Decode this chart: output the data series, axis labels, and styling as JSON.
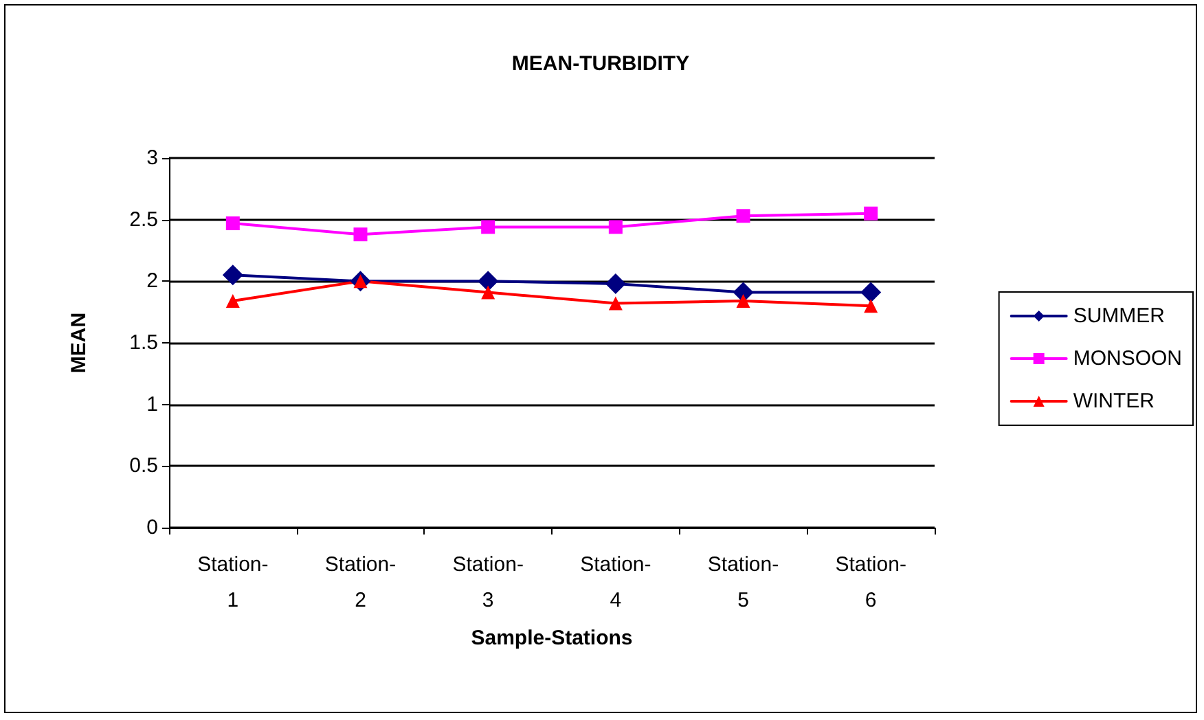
{
  "chart_data": {
    "type": "line",
    "title": "MEAN-TURBIDITY",
    "xlabel": "Sample-Stations",
    "ylabel": "MEAN",
    "categories": [
      "Station-\n1",
      "Station-\n2",
      "Station-\n3",
      "Station-\n4",
      "Station-\n5",
      "Station-\n6"
    ],
    "series": [
      {
        "name": "SUMMER",
        "color": "#000080",
        "marker": "diamond",
        "values": [
          2.05,
          2.0,
          2.0,
          1.98,
          1.91,
          1.91
        ]
      },
      {
        "name": "MONSOON",
        "color": "#ff00ff",
        "marker": "square",
        "values": [
          2.47,
          2.38,
          2.44,
          2.44,
          2.53,
          2.55
        ]
      },
      {
        "name": "WINTER",
        "color": "#ff0000",
        "marker": "triangle",
        "values": [
          1.84,
          2.0,
          1.91,
          1.82,
          1.84,
          1.8
        ]
      }
    ],
    "ylim": [
      0,
      3
    ],
    "yticks": [
      0,
      0.5,
      1,
      1.5,
      2,
      2.5,
      3
    ],
    "grid": "y",
    "legend": "right",
    "line_style": "solid"
  }
}
